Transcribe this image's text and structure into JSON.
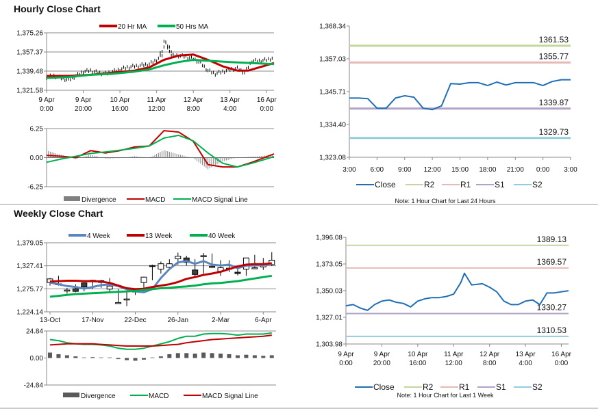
{
  "hourly": {
    "title": "Hourly Close Chart",
    "price": {
      "type": "line",
      "yticks": [
        1321.58,
        1339.48,
        1357.37,
        1375.26
      ],
      "ytick_labels": [
        "1,321.58",
        "1,339.48",
        "1,357.37",
        "1,375.26"
      ],
      "ylim": [
        1321.58,
        1375.26
      ],
      "x_unit": "hours since 9 Apr 0:00",
      "xticks": [
        0,
        20,
        40,
        60,
        80,
        100,
        120
      ],
      "xtick_labels": [
        [
          "9 Apr",
          "0:00"
        ],
        [
          "9 Apr",
          "20:00"
        ],
        [
          "10 Apr",
          "16:00"
        ],
        [
          "11 Apr",
          "12:00"
        ],
        [
          "12 Apr",
          "8:00"
        ],
        [
          "13 Apr",
          "4:00"
        ],
        [
          "16 Apr",
          "0:00"
        ]
      ],
      "close": [
        [
          0,
          1334
        ],
        [
          4,
          1335
        ],
        [
          8,
          1333
        ],
        [
          12,
          1331
        ],
        [
          16,
          1335
        ],
        [
          20,
          1339
        ],
        [
          24,
          1340
        ],
        [
          28,
          1338
        ],
        [
          32,
          1337
        ],
        [
          36,
          1339
        ],
        [
          40,
          1341
        ],
        [
          44,
          1343
        ],
        [
          48,
          1344
        ],
        [
          52,
          1345
        ],
        [
          56,
          1346
        ],
        [
          60,
          1350
        ],
        [
          62,
          1356
        ],
        [
          64,
          1368
        ],
        [
          66,
          1360
        ],
        [
          68,
          1354
        ],
        [
          72,
          1354
        ],
        [
          76,
          1353
        ],
        [
          80,
          1351
        ],
        [
          84,
          1347
        ],
        [
          88,
          1340
        ],
        [
          92,
          1337
        ],
        [
          96,
          1339
        ],
        [
          100,
          1341
        ],
        [
          104,
          1342
        ],
        [
          108,
          1338
        ],
        [
          112,
          1349
        ],
        [
          116,
          1349
        ],
        [
          120,
          1350
        ],
        [
          124,
          1352
        ]
      ],
      "series": [
        {
          "name": "20 Hr MA",
          "color": "#c00000",
          "points": [
            [
              0,
              1335
            ],
            [
              12,
              1335
            ],
            [
              24,
              1336
            ],
            [
              36,
              1338
            ],
            [
              48,
              1340
            ],
            [
              56,
              1343
            ],
            [
              64,
              1350
            ],
            [
              72,
              1354
            ],
            [
              80,
              1355
            ],
            [
              88,
              1350
            ],
            [
              96,
              1344
            ],
            [
              104,
              1340
            ],
            [
              110,
              1340
            ],
            [
              124,
              1347
            ]
          ]
        },
        {
          "name": "50 Hrs MA",
          "color": "#00b050",
          "points": [
            [
              0,
              1333
            ],
            [
              12,
              1334
            ],
            [
              24,
              1336
            ],
            [
              36,
              1337
            ],
            [
              48,
              1339
            ],
            [
              56,
              1341
            ],
            [
              64,
              1345
            ],
            [
              72,
              1348
            ],
            [
              80,
              1350
            ],
            [
              90,
              1349
            ],
            [
              100,
              1348
            ],
            [
              112,
              1347
            ],
            [
              124,
              1346
            ]
          ]
        }
      ]
    },
    "macd": {
      "type": "line",
      "yticks": [
        -6.25,
        0,
        6.25
      ],
      "ytick_labels": [
        "-6.25",
        "0.00",
        "6.25"
      ],
      "ylim": [
        -6.25,
        6.25
      ],
      "x": [
        0,
        8,
        16,
        24,
        32,
        40,
        48,
        56,
        64,
        72,
        80,
        88,
        96,
        104,
        112,
        124
      ],
      "divergence": {
        "name": "Divergence",
        "color": "#808080",
        "values": [
          1.5,
          0.6,
          -0.3,
          0.6,
          -0.2,
          -0.1,
          0.3,
          0,
          1.6,
          0.7,
          -0.1,
          -2.5,
          -0.8,
          0,
          0.2,
          0.6
        ]
      },
      "series": [
        {
          "name": "MACD",
          "color": "#c00000",
          "values": [
            0.5,
            0.3,
            0,
            1.5,
            1.0,
            1.5,
            2.3,
            2.5,
            5.8,
            5.5,
            3.5,
            -1.5,
            -2.0,
            -2.0,
            -1.0,
            0.8
          ]
        },
        {
          "name": "MACD Signal Line",
          "color": "#00b050",
          "values": [
            -1,
            -0.3,
            0.3,
            0.9,
            1.2,
            1.6,
            2.0,
            2.5,
            4.2,
            4.8,
            3.6,
            1.0,
            -1.2,
            -2.0,
            -1.2,
            0.2
          ]
        }
      ]
    },
    "pivot": {
      "type": "line",
      "yticks": [
        1323.08,
        1334.4,
        1345.71,
        1357.03,
        1368.34
      ],
      "ytick_labels": [
        "1,323.08",
        "1,334.40",
        "1,345.71",
        "1,357.03",
        "1,368.34"
      ],
      "ylim": [
        1323.08,
        1368.34
      ],
      "xticks": [
        0,
        3,
        6,
        9,
        12,
        15,
        18,
        21,
        24
      ],
      "xtick_labels": [
        "3:00",
        "6:00",
        "9:00",
        "12:00",
        "15:00",
        "18:00",
        "21:00",
        "0:00",
        "3:00"
      ],
      "close": {
        "name": "Close",
        "color": "#1f6eb5",
        "values": [
          1343.5,
          1343.5,
          1343.3,
          1340,
          1340,
          1343.5,
          1344.3,
          1343.8,
          1340,
          1339.5,
          1340.8,
          1348.5,
          1348.3,
          1348.8,
          1348.8,
          1347.8,
          1349,
          1348,
          1348.8,
          1348.8,
          1348.8,
          1347.8,
          1349.2,
          1349.8,
          1349.8
        ]
      },
      "levels": [
        {
          "name": "R2",
          "value": 1361.53,
          "label": "1361.53",
          "color": "#c3d69b"
        },
        {
          "name": "R1",
          "value": 1355.77,
          "label": "1355.77",
          "color": "#e6b9b8"
        },
        {
          "name": "S1",
          "value": 1339.87,
          "label": "1339.87",
          "color": "#b3a2c7"
        },
        {
          "name": "S2",
          "value": 1329.73,
          "label": "1329.73",
          "color": "#93cddd"
        }
      ],
      "note": "Note: 1 Hour Chart for Last 24 Hours"
    }
  },
  "weekly": {
    "title": "Weekly Close Chart",
    "price": {
      "type": "candlestick",
      "yticks": [
        1224.14,
        1275.77,
        1327.41,
        1379.05
      ],
      "ytick_labels": [
        "1,224.14",
        "1,275.77",
        "1,327.41",
        "1,379.05"
      ],
      "ylim": [
        1224.14,
        1379.05
      ],
      "xticks": [
        0,
        5,
        10,
        15,
        20,
        25
      ],
      "xtick_labels": [
        "13-Oct",
        "17-Nov",
        "22-Dec",
        "26-Jan",
        "2-Mar",
        "6-Apr"
      ],
      "candles_ohlc": [
        [
          1290,
          1300,
          1283,
          1298
        ],
        [
          1287,
          1305,
          1283,
          1286
        ],
        [
          1273,
          1278,
          1265,
          1273
        ],
        [
          1276,
          1286,
          1268,
          1270
        ],
        [
          1289,
          1290,
          1270,
          1280
        ],
        [
          1295,
          1296,
          1275,
          1295
        ],
        [
          1294,
          1296,
          1278,
          1290
        ],
        [
          1275,
          1300,
          1270,
          1282
        ],
        [
          1245,
          1275,
          1243,
          1245
        ],
        [
          1253,
          1270,
          1237,
          1253
        ],
        [
          1270,
          1273,
          1262,
          1271
        ],
        [
          1290,
          1303,
          1268,
          1302
        ],
        [
          1328,
          1330,
          1295,
          1326
        ],
        [
          1320,
          1337,
          1310,
          1332
        ],
        [
          1324,
          1342,
          1318,
          1332
        ],
        [
          1343,
          1357,
          1330,
          1349
        ],
        [
          1345,
          1350,
          1328,
          1335
        ],
        [
          1318,
          1342,
          1304,
          1308
        ],
        [
          1350,
          1356,
          1310,
          1350
        ],
        [
          1326,
          1355,
          1322,
          1326
        ],
        [
          1315,
          1340,
          1305,
          1323
        ],
        [
          1322,
          1340,
          1313,
          1322
        ],
        [
          1313,
          1323,
          1306,
          1310
        ],
        [
          1320,
          1345,
          1305,
          1345
        ],
        [
          1323,
          1352,
          1323,
          1323
        ],
        [
          1325,
          1345,
          1318,
          1330
        ],
        [
          1330,
          1358,
          1327,
          1340
        ]
      ],
      "series": [
        {
          "name": "4 Week",
          "color": "#5a86c0",
          "values": [
            1290,
            1286,
            1282,
            1280,
            1276,
            1280,
            1284,
            1286,
            1282,
            1275,
            1270,
            1268,
            1275,
            1300,
            1320,
            1335,
            1338,
            1332,
            1338,
            1330,
            1328,
            1330,
            1322,
            1328,
            1328,
            1329,
            1332
          ]
        },
        {
          "name": "13 Week",
          "color": "#c00000",
          "values": [
            1292,
            1293,
            1294,
            1294,
            1293,
            1293,
            1292,
            1289,
            1283,
            1277,
            1275,
            1276,
            1280,
            1283,
            1286,
            1291,
            1298,
            1302,
            1307,
            1310,
            1314,
            1320,
            1326,
            1330,
            1331,
            1331,
            1333
          ]
        },
        {
          "name": "40 Week",
          "color": "#00b050",
          "values": [
            1258,
            1260,
            1262,
            1264,
            1265,
            1266,
            1267,
            1268,
            1269,
            1270,
            1271,
            1273,
            1275,
            1277,
            1278,
            1280,
            1281,
            1283,
            1286,
            1288,
            1289,
            1291,
            1293,
            1296,
            1299,
            1302,
            1305
          ]
        }
      ]
    },
    "macd": {
      "type": "line",
      "yticks": [
        -24.84,
        0,
        24.84
      ],
      "ytick_labels": [
        "-24.84",
        "0.00",
        "24.84"
      ],
      "ylim": [
        -24.84,
        24.84
      ],
      "divergence": {
        "name": "Divergence",
        "color": "#595959",
        "values": [
          5,
          3.5,
          2.5,
          1.5,
          0.5,
          0.8,
          0.5,
          0.5,
          -1,
          -2,
          -2.5,
          -1.5,
          0.5,
          1.5,
          3.5,
          4.5,
          4.5,
          4,
          5,
          4.5,
          4,
          3.5,
          2.5,
          3,
          2.5,
          2,
          2.5
        ]
      },
      "series": [
        {
          "name": "MACD",
          "color": "#00b050",
          "values": [
            17,
            16,
            14,
            13,
            12.5,
            12.5,
            12,
            11,
            9,
            8,
            8,
            9,
            11,
            13,
            15,
            18,
            20,
            20,
            22,
            22.5,
            22.5,
            22,
            21,
            22,
            22,
            22,
            23
          ]
        },
        {
          "name": "MACD Signal Line",
          "color": "#c00000",
          "values": [
            12,
            12.5,
            13,
            13,
            13,
            13,
            12.5,
            12,
            11.5,
            11,
            11,
            11,
            11,
            11.5,
            12,
            12.5,
            14,
            15,
            16,
            17,
            17.5,
            18,
            18.5,
            19,
            19.5,
            20,
            21
          ]
        }
      ]
    },
    "pivot": {
      "type": "line",
      "yticks": [
        1303.98,
        1327.01,
        1350.03,
        1373.05,
        1396.08
      ],
      "ytick_labels": [
        "1,303.98",
        "1,327.01",
        "1,350.03",
        "1,373.05",
        "1,396.08"
      ],
      "ylim": [
        1303.98,
        1396.08
      ],
      "xticks": [
        0,
        20,
        40,
        60,
        80,
        100,
        120
      ],
      "xtick_labels": [
        [
          "9 Apr",
          "0:00"
        ],
        [
          "9 Apr",
          "20:00"
        ],
        [
          "10 Apr",
          "16:00"
        ],
        [
          "11 Apr",
          "12:00"
        ],
        [
          "12 Apr",
          "8:00"
        ],
        [
          "13 Apr",
          "4:00"
        ],
        [
          "16 Apr",
          "0:00"
        ]
      ],
      "close": {
        "name": "Close",
        "color": "#1f6eb5",
        "points": [
          [
            0,
            1337
          ],
          [
            4,
            1338
          ],
          [
            8,
            1335
          ],
          [
            12,
            1333
          ],
          [
            16,
            1338
          ],
          [
            20,
            1341
          ],
          [
            24,
            1342
          ],
          [
            28,
            1340
          ],
          [
            32,
            1339
          ],
          [
            36,
            1336
          ],
          [
            40,
            1341
          ],
          [
            44,
            1343
          ],
          [
            48,
            1344
          ],
          [
            52,
            1344
          ],
          [
            56,
            1345
          ],
          [
            60,
            1347
          ],
          [
            64,
            1357
          ],
          [
            66,
            1365
          ],
          [
            70,
            1355
          ],
          [
            76,
            1356
          ],
          [
            80,
            1353
          ],
          [
            84,
            1349
          ],
          [
            88,
            1341
          ],
          [
            92,
            1338
          ],
          [
            96,
            1338
          ],
          [
            100,
            1341
          ],
          [
            104,
            1342
          ],
          [
            108,
            1338
          ],
          [
            112,
            1348
          ],
          [
            116,
            1348
          ],
          [
            120,
            1349
          ],
          [
            124,
            1350
          ]
        ]
      },
      "levels": [
        {
          "name": "R2",
          "value": 1389.13,
          "label": "1389.13",
          "color": "#c3d69b"
        },
        {
          "name": "R1",
          "value": 1369.57,
          "label": "1369.57",
          "color": "#e6b9b8"
        },
        {
          "name": "S1",
          "value": 1330.27,
          "label": "1330.27",
          "color": "#b3a2c7"
        },
        {
          "name": "S2",
          "value": 1310.53,
          "label": "1310.53",
          "color": "#93cddd"
        }
      ],
      "note": "Note: 1 Hour Chart for Last 1 Week"
    }
  }
}
